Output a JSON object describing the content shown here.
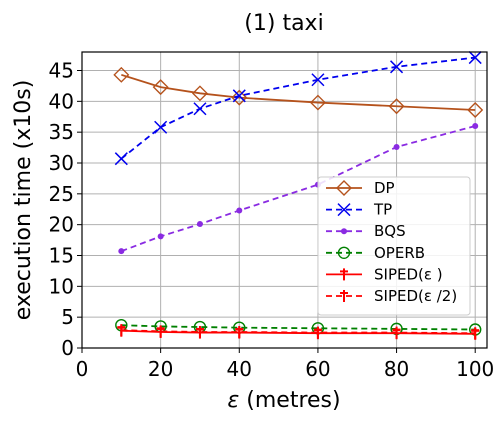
{
  "chart_data": {
    "type": "line",
    "title": "(1) taxi",
    "xlabel": "ε (metres)",
    "xlabel_symbol": "ε",
    "xlabel_unit": " (metres)",
    "ylabel": "execution time (x10s)",
    "xlim": [
      0,
      103
    ],
    "ylim": [
      0,
      48
    ],
    "xticks": [
      0,
      20,
      40,
      60,
      80,
      100
    ],
    "yticks": [
      0,
      5,
      10,
      15,
      20,
      25,
      30,
      35,
      40,
      45
    ],
    "grid": true,
    "legend_position": "lower-right",
    "x": [
      10,
      20,
      30,
      40,
      60,
      80,
      100
    ],
    "series": [
      {
        "name": "DP",
        "color": "#b5521c",
        "dash": "solid",
        "marker": "diamond",
        "values": [
          44.3,
          42.3,
          41.3,
          40.6,
          39.8,
          39.2,
          38.6
        ]
      },
      {
        "name": "TP",
        "color": "#0000ee",
        "dash": "dashed",
        "marker": "x",
        "values": [
          30.7,
          35.8,
          38.8,
          40.9,
          43.5,
          45.6,
          47.1
        ]
      },
      {
        "name": "BQS",
        "color": "#8a2be2",
        "dash": "dashed",
        "marker": "dot",
        "values": [
          15.7,
          18.1,
          20.1,
          22.3,
          26.5,
          32.6,
          36.0
        ]
      },
      {
        "name": "OPERB",
        "color": "#008000",
        "dash": "dashed",
        "marker": "circle",
        "values": [
          3.7,
          3.5,
          3.4,
          3.3,
          3.2,
          3.1,
          3.0
        ]
      },
      {
        "name": "SIPED(ε )",
        "color": "#ff0000",
        "dash": "solid",
        "marker": "tick",
        "values": [
          2.8,
          2.6,
          2.5,
          2.5,
          2.4,
          2.4,
          2.3
        ]
      },
      {
        "name": "SIPED(ε /2)",
        "color": "#ff0000",
        "dash": "dashed",
        "marker": "tick",
        "values": [
          2.9,
          2.7,
          2.6,
          2.6,
          2.5,
          2.5,
          2.4
        ]
      }
    ]
  }
}
